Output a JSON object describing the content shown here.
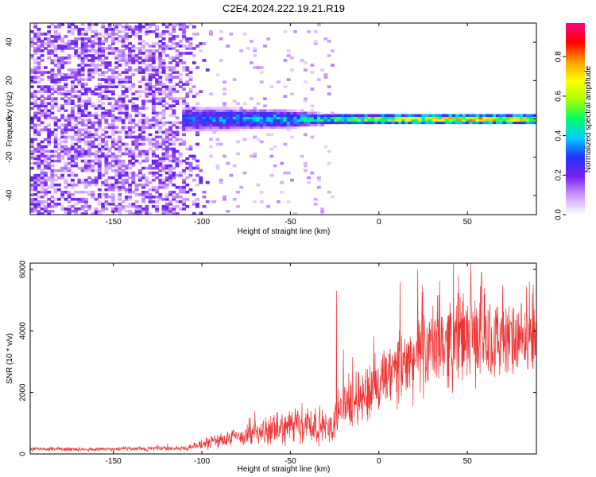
{
  "title": "C2E4.2024.222.19.21.R19",
  "chart_data": [
    {
      "type": "heatmap",
      "xlabel": "Height of straight line (km)",
      "ylabel": "Frequency (Hz)",
      "xlim": [
        -197,
        89
      ],
      "ylim": [
        -50,
        50
      ],
      "x_ticks": [
        -150,
        -100,
        -50,
        0,
        50
      ],
      "y_ticks": [
        -40,
        -20,
        0,
        20,
        40
      ],
      "colorbar": {
        "label": "Normalized spectral amplitude",
        "range": [
          0,
          0.97
        ],
        "ticks": [
          0.0,
          0.2,
          0.4,
          0.6,
          0.8
        ],
        "colors": [
          "#ffffff",
          "#cc99ff",
          "#7722ee",
          "#2233ff",
          "#00ccff",
          "#00ff66",
          "#aaff00",
          "#ffff00",
          "#ff9900",
          "#ff0000",
          "#ff0088"
        ]
      },
      "summary": {
        "noise_region_x": [
          -197,
          -100
        ],
        "signal_band_center_hz": 0,
        "band_halfwidth_hz": [
          [
            -110,
            7
          ],
          [
            -80,
            6
          ],
          [
            -50,
            5
          ],
          [
            -30,
            3
          ],
          [
            0,
            3
          ],
          [
            50,
            3
          ],
          [
            89,
            3
          ]
        ],
        "peak_amplitude_by_x": [
          [
            -110,
            0.35
          ],
          [
            -80,
            0.45
          ],
          [
            -50,
            0.5
          ],
          [
            -25,
            0.6
          ],
          [
            0,
            0.75
          ],
          [
            30,
            0.85
          ],
          [
            60,
            0.9
          ],
          [
            89,
            0.8
          ]
        ]
      }
    },
    {
      "type": "line",
      "xlabel": "Height of straight line (km)",
      "ylabel": "SNR (10 * v/v)",
      "xlim": [
        -197,
        89
      ],
      "ylim": [
        0,
        6200
      ],
      "x_ticks": [
        -150,
        -100,
        -50,
        0,
        50
      ],
      "y_ticks": [
        0,
        2000,
        4000,
        6000
      ],
      "color": "#ee3333",
      "envelope": {
        "x": [
          -197,
          -150,
          -110,
          -100,
          -90,
          -80,
          -70,
          -60,
          -50,
          -40,
          -30,
          -26,
          -24,
          -20,
          -10,
          0,
          10,
          20,
          30,
          40,
          50,
          60,
          70,
          80,
          89
        ],
        "median": [
          150,
          160,
          180,
          300,
          450,
          550,
          650,
          750,
          900,
          1000,
          850,
          800,
          1400,
          1600,
          1900,
          2200,
          2700,
          3100,
          3500,
          3700,
          3800,
          3800,
          3700,
          3600,
          3700
        ],
        "spread": [
          60,
          60,
          80,
          150,
          250,
          300,
          350,
          450,
          550,
          650,
          500,
          400,
          700,
          700,
          900,
          1000,
          1100,
          1200,
          1300,
          1400,
          1400,
          1300,
          1200,
          1100,
          1000
        ]
      },
      "spikes": [
        [
          -24,
          5300
        ],
        [
          -20,
          3400
        ],
        [
          12,
          5600
        ],
        [
          22,
          6000
        ],
        [
          45,
          5800
        ],
        [
          52,
          6200
        ],
        [
          58,
          5900
        ],
        [
          70,
          5500
        ],
        [
          85,
          5600
        ]
      ]
    }
  ]
}
